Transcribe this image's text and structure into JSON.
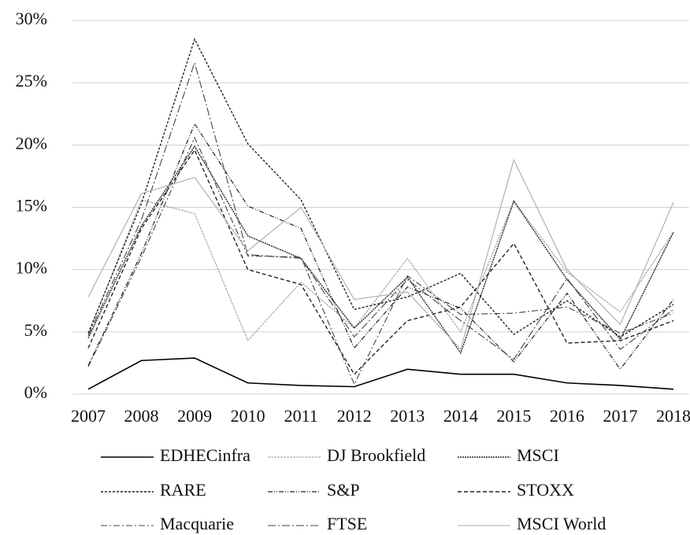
{
  "chart_data": {
    "type": "line",
    "categories": [
      "2007",
      "2008",
      "2009",
      "2010",
      "2011",
      "2012",
      "2013",
      "2014",
      "2015",
      "2016",
      "2017",
      "2018"
    ],
    "ylim": [
      0,
      30
    ],
    "yticks": [
      {
        "value": 0,
        "label": "0%"
      },
      {
        "value": 5,
        "label": "5%"
      },
      {
        "value": 10,
        "label": "10%"
      },
      {
        "value": 15,
        "label": "15%"
      },
      {
        "value": 20,
        "label": "20%"
      },
      {
        "value": 25,
        "label": "25%"
      },
      {
        "value": 30,
        "label": "30%"
      }
    ],
    "grid": true,
    "series": [
      {
        "name": "EDHECinfra",
        "color": "#000000",
        "values": [
          0.4,
          2.7,
          2.9,
          0.9,
          0.7,
          0.6,
          2.0,
          1.6,
          1.6,
          0.9,
          0.7,
          0.4
        ]
      },
      {
        "name": "DJ Brookfield",
        "color": "#9a9a9a",
        "values": [
          4.8,
          15.6,
          14.5,
          4.3,
          9.0,
          5.3,
          10.9,
          5.0,
          15.5,
          9.8,
          6.6,
          13.0
        ]
      },
      {
        "name": "MSCI",
        "color": "#222222",
        "values": [
          4.5,
          13.5,
          19.9,
          12.7,
          10.9,
          5.3,
          9.4,
          3.3,
          15.5,
          9.2,
          4.4,
          13.0
        ]
      },
      {
        "name": "RARE",
        "color": "#222222",
        "values": [
          4.9,
          15.3,
          28.5,
          20.1,
          15.6,
          6.8,
          7.8,
          9.7,
          4.8,
          7.5,
          4.6,
          7.2
        ]
      },
      {
        "name": "S&P",
        "color": "#222222",
        "values": [
          2.3,
          11.3,
          21.7,
          15.1,
          13.3,
          3.7,
          8.6,
          6.9,
          2.6,
          8.1,
          2.0,
          7.6
        ]
      },
      {
        "name": "STOXX",
        "color": "#222222",
        "values": [
          3.7,
          13.3,
          19.6,
          10.0,
          8.8,
          1.6,
          5.9,
          7.0,
          12.1,
          4.1,
          4.3,
          5.9
        ]
      },
      {
        "name": "Macquarie",
        "color": "#444444",
        "values": [
          2.2,
          11.0,
          20.6,
          11.1,
          11.0,
          0.8,
          9.5,
          6.4,
          6.5,
          7.0,
          4.9,
          6.5
        ]
      },
      {
        "name": "FTSE",
        "color": "#444444",
        "values": [
          4.7,
          14.0,
          26.6,
          11.2,
          10.9,
          4.6,
          9.2,
          5.9,
          2.8,
          9.3,
          3.6,
          6.8
        ]
      },
      {
        "name": "MSCI World",
        "color": "#aaaaaa",
        "values": [
          7.8,
          16.1,
          17.4,
          11.5,
          15.0,
          7.6,
          8.2,
          3.6,
          18.8,
          10.0,
          5.6,
          15.4
        ]
      }
    ]
  }
}
